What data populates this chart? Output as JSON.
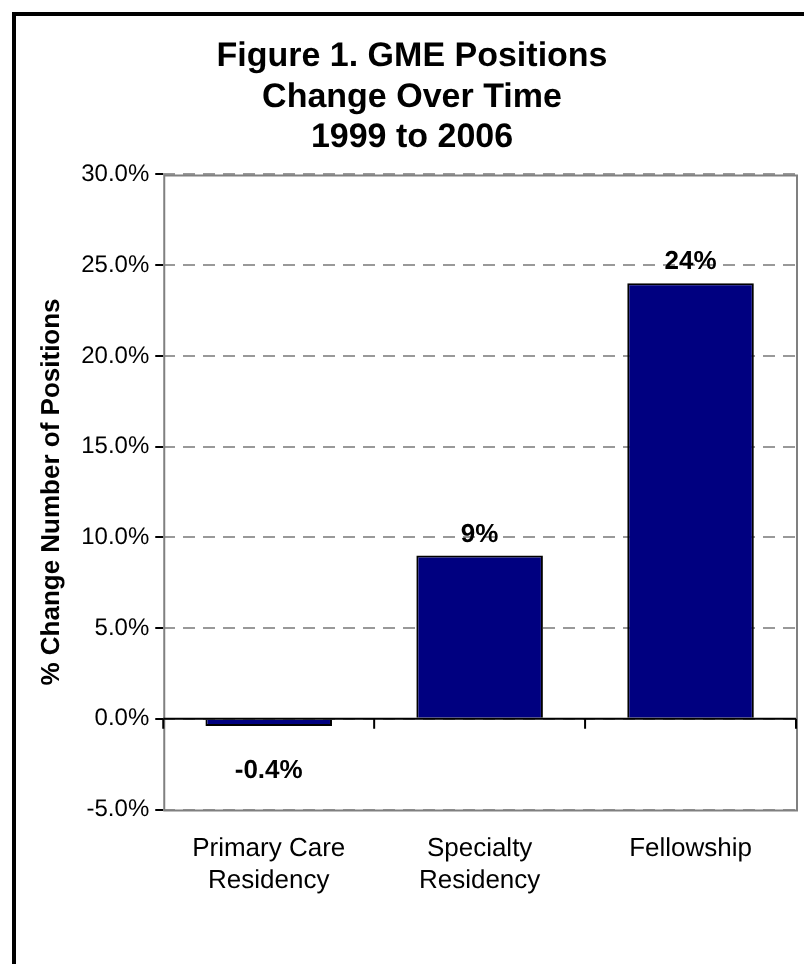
{
  "chart_data": {
    "type": "bar",
    "title": "Figure 1. GME Positions\nChange Over Time\n1999 to 2006",
    "ylabel": "% Change Number of Positions",
    "categories": [
      "Primary Care\nResidency",
      "Specialty\nResidency",
      "Fellowship"
    ],
    "values": [
      -0.4,
      9,
      24
    ],
    "color": "#000080",
    "value_labels": [
      "-0.4%",
      "9%",
      "24%"
    ],
    "ylim": [
      -5,
      30
    ],
    "yticks": [
      {
        "value": -5,
        "label": "-5.0%"
      },
      {
        "value": 0,
        "label": "0.0%"
      },
      {
        "value": 5,
        "label": "5.0%"
      },
      {
        "value": 10,
        "label": "10.0%"
      },
      {
        "value": 15,
        "label": "15.0%"
      },
      {
        "value": 20,
        "label": "20.0%"
      },
      {
        "value": 25,
        "label": "25.0%"
      },
      {
        "value": 30,
        "label": "30.0%"
      }
    ],
    "grid": "y"
  }
}
